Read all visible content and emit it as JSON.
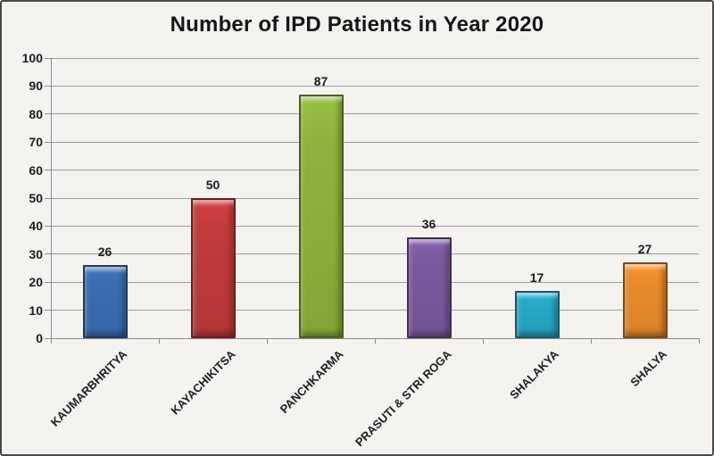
{
  "chart_data": {
    "type": "bar",
    "title": "Number of IPD Patients in Year 2020",
    "categories": [
      "KAUMARBHRITYA",
      "KAYACHIKITSA",
      "PANCHKARMA",
      "PRASUTI & STRI ROGA",
      "SHALAKYA",
      "SHALYA"
    ],
    "values": [
      26,
      50,
      87,
      36,
      17,
      27
    ],
    "bar_colors": [
      "#3c6eb4",
      "#c33c3c",
      "#8cb43c",
      "#7d5aa0",
      "#28aac8",
      "#eb8c2d"
    ],
    "value_labels": [
      "26",
      "50",
      "87",
      "36",
      "17",
      "27"
    ],
    "yticks": [
      0,
      10,
      20,
      30,
      40,
      50,
      60,
      70,
      80,
      90,
      100
    ],
    "ylim": [
      0,
      100
    ],
    "xlabel": "",
    "ylabel": "",
    "grid": "horizontal",
    "legend": "none",
    "bar_style": "3d-bevel"
  },
  "colors": {
    "background": "#f4f3f0",
    "frame_border": "#4a4a4a",
    "gridline": "#9b9b9b",
    "axis": "#8a8a8a",
    "text": "#1c1c1c"
  }
}
